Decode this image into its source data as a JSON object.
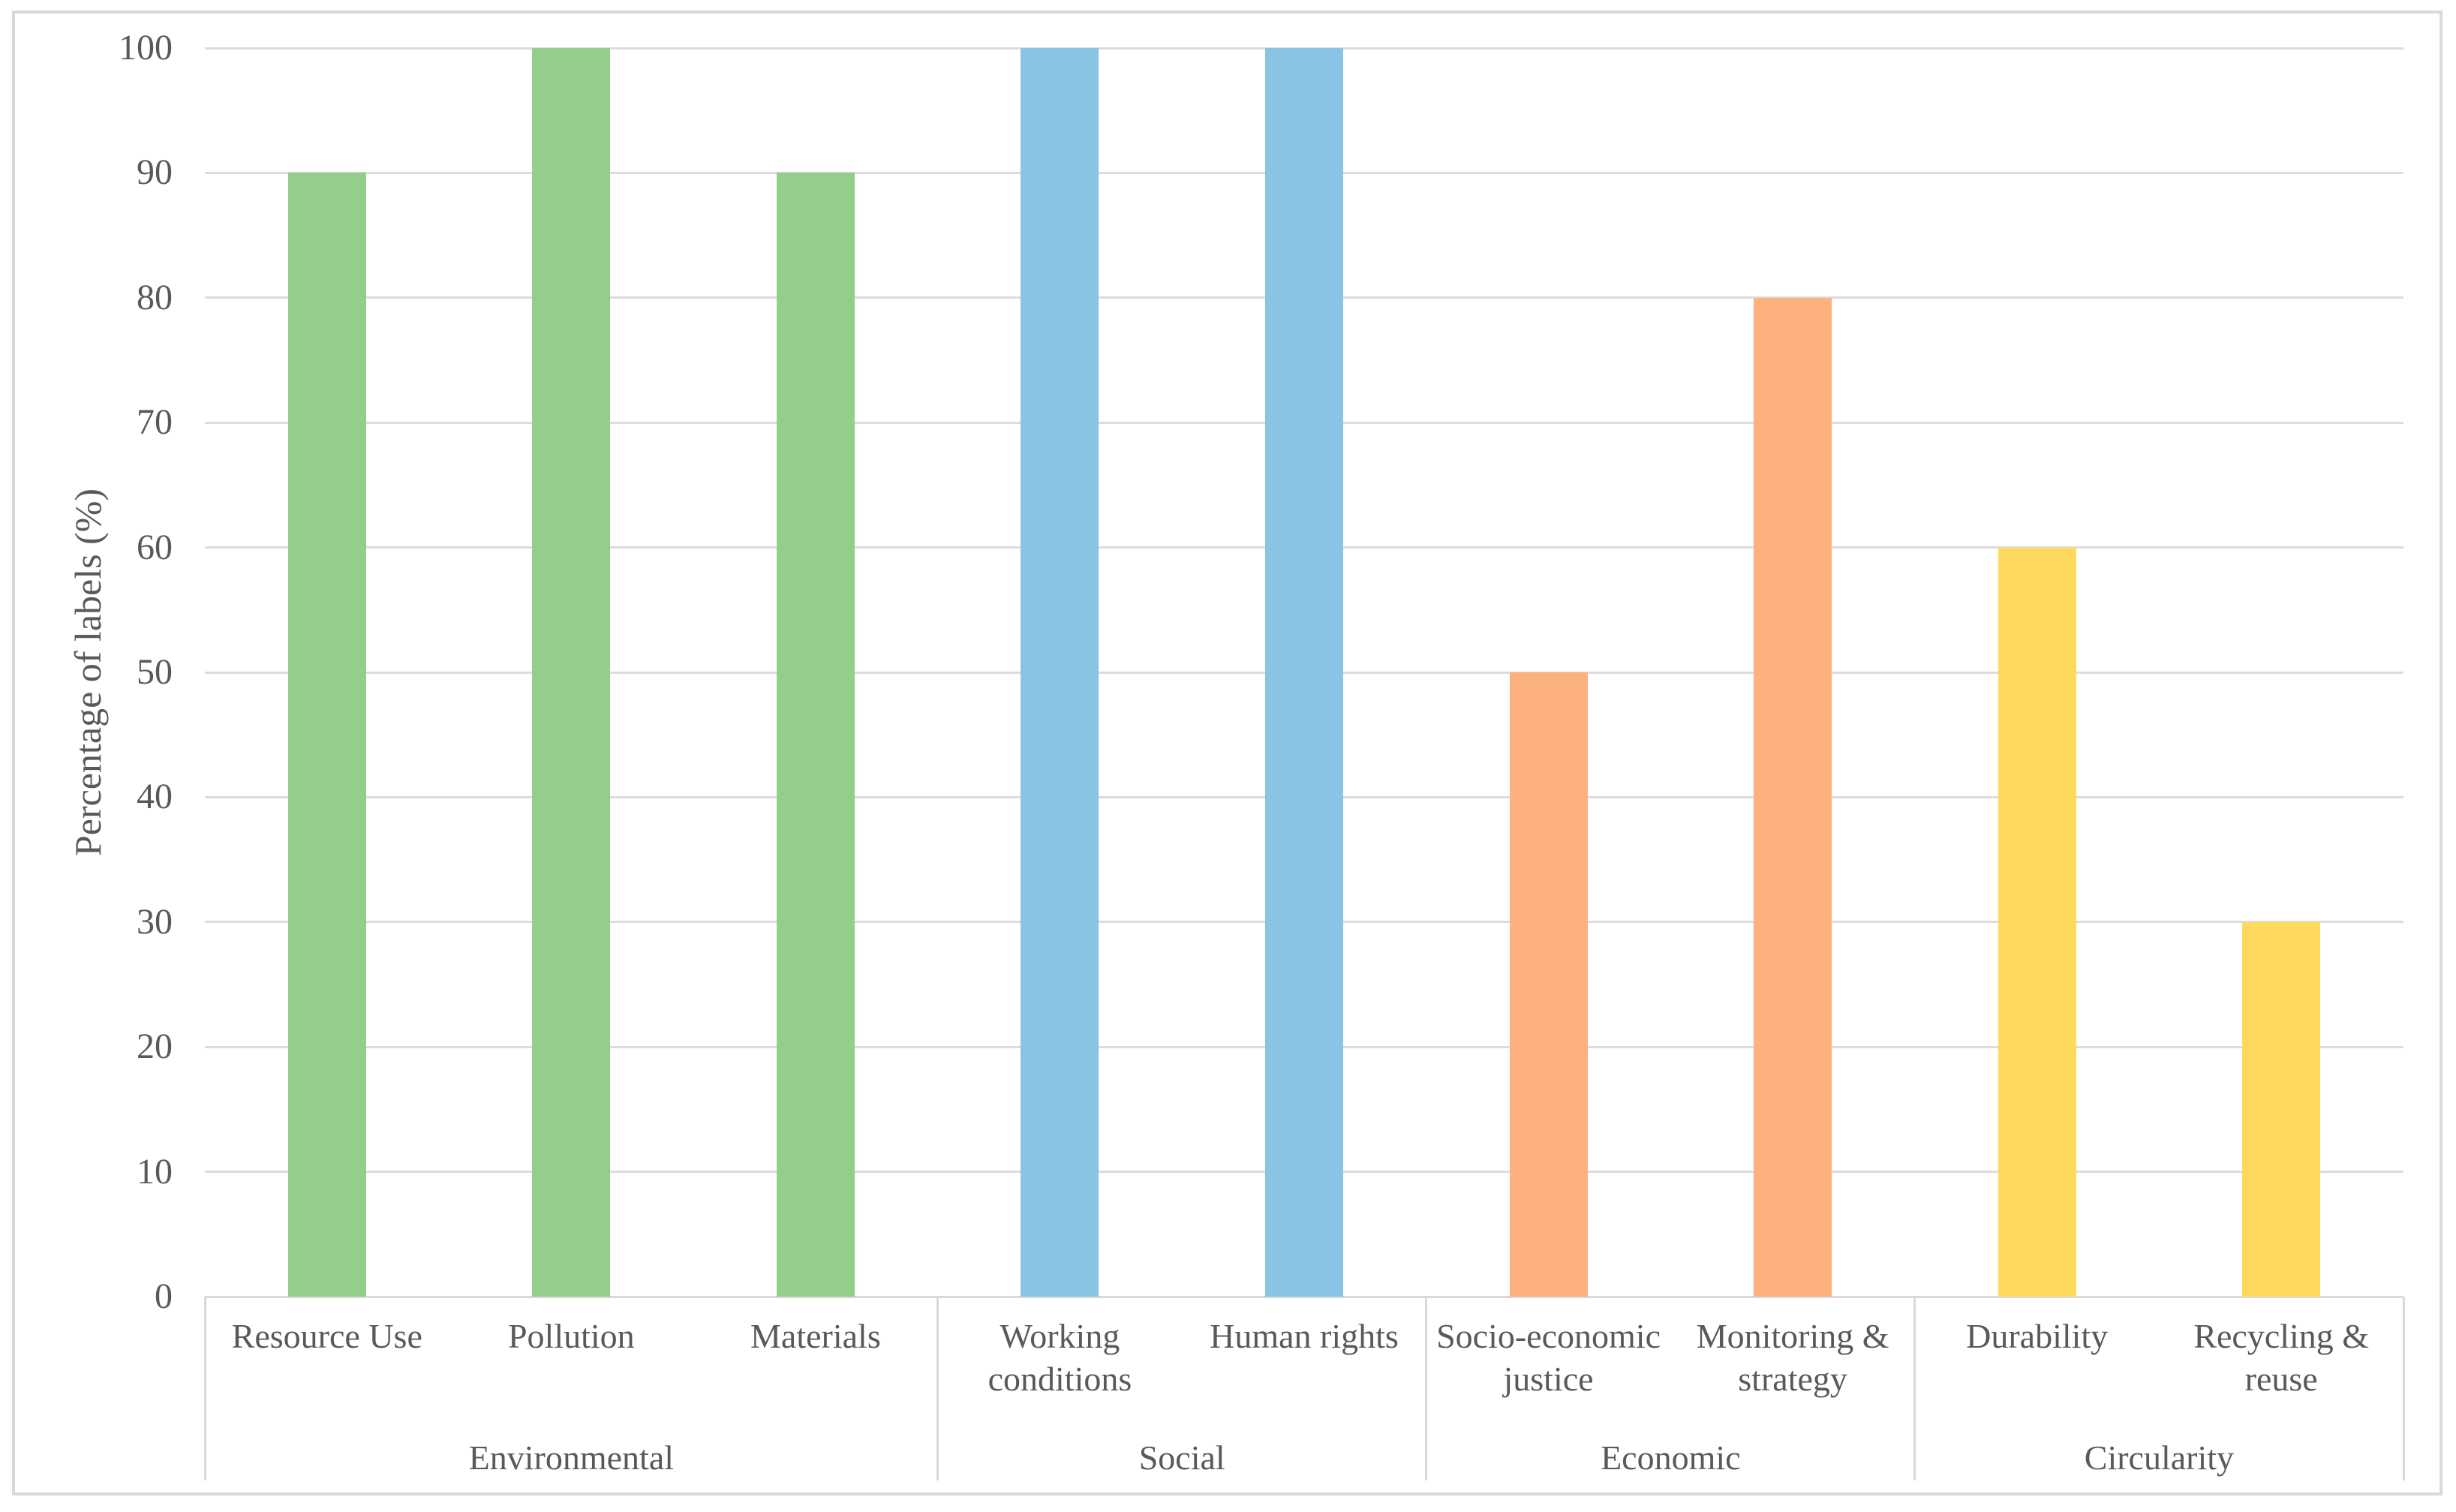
{
  "chart_data": {
    "type": "bar",
    "title": "",
    "xlabel": "",
    "ylabel": "Percentage of labels (%)",
    "ylim": [
      0,
      100
    ],
    "ytick_interval": 10,
    "yticks": [
      0,
      10,
      20,
      30,
      40,
      50,
      60,
      70,
      80,
      90,
      100
    ],
    "grid": "horizontal",
    "legend": "none",
    "categories": [
      "Resource Use",
      "Pollution",
      "Materials",
      "Working conditions",
      "Human rights",
      "Socio-economic justice",
      "Monitoring & strategy",
      "Durability",
      "Recycling & reuse"
    ],
    "values": [
      90,
      100,
      90,
      100,
      100,
      50,
      80,
      60,
      30
    ],
    "groups": [
      {
        "label": "Environmental",
        "category_indices": [
          0,
          1,
          2
        ],
        "bar_color": "#93CE8A"
      },
      {
        "label": "Social",
        "category_indices": [
          3,
          4
        ],
        "bar_color": "#8AC4E4"
      },
      {
        "label": "Economic",
        "category_indices": [
          5,
          6
        ],
        "bar_color": "#FCB17E"
      },
      {
        "label": "Circularity",
        "category_indices": [
          7,
          8
        ],
        "bar_color": "#FFD95E"
      }
    ],
    "colors": {
      "axis_text": "#595959",
      "gridline": "#DCDCDC",
      "axis_line": "#D9D9D9",
      "divider": "#D9D9D9",
      "outer_border": "#D9D9D9",
      "background": "#FFFFFF"
    }
  }
}
